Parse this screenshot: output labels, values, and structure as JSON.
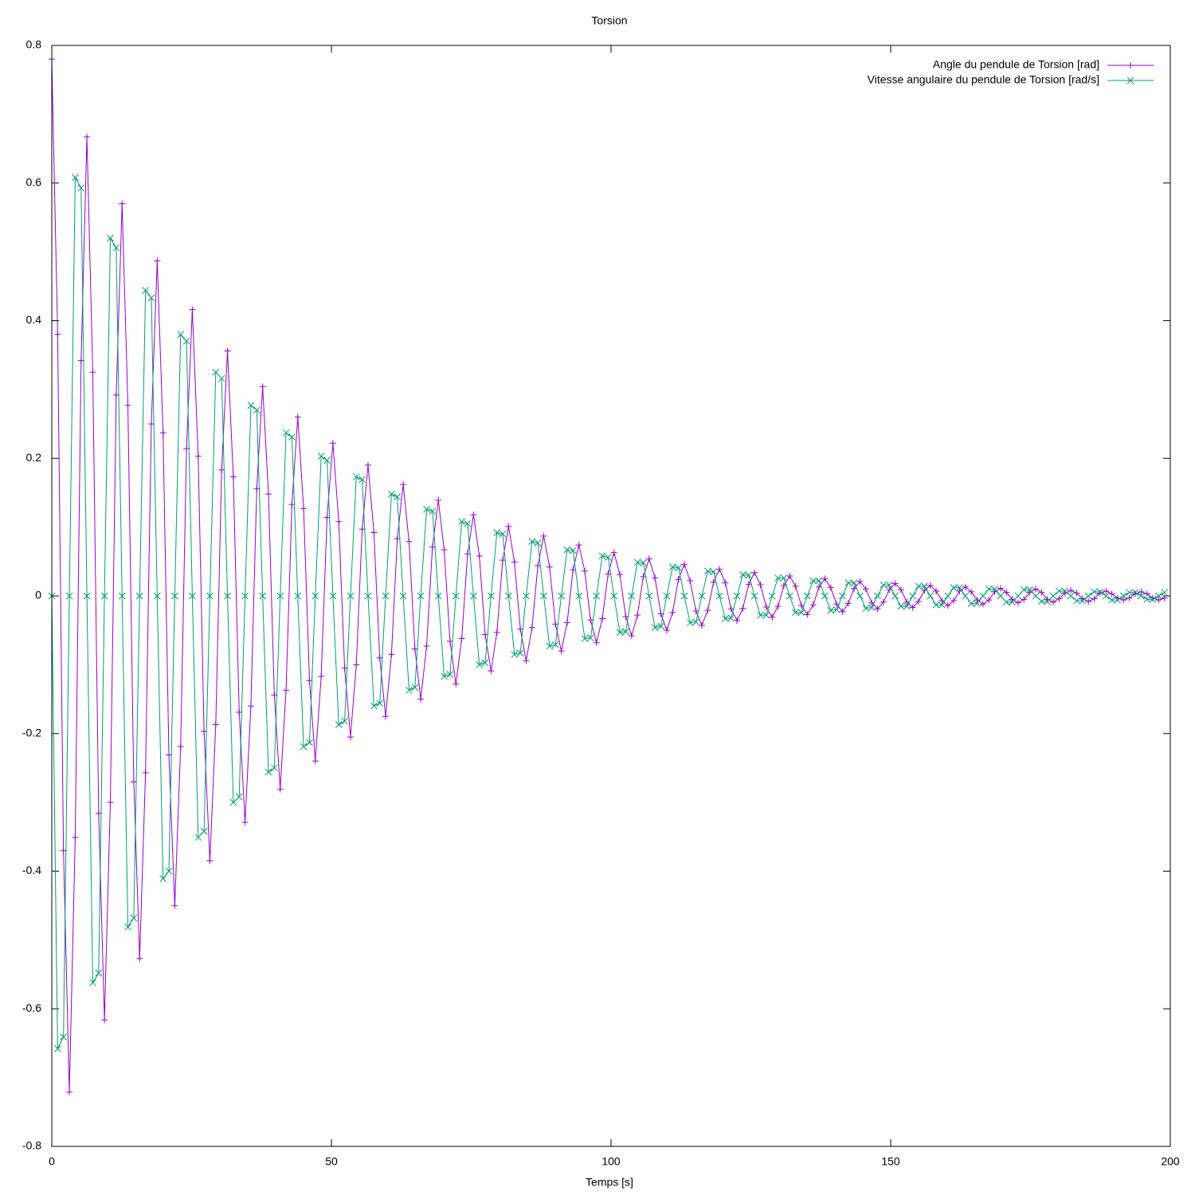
{
  "chart_data": {
    "type": "line",
    "title": "Torsion",
    "x_label": "Temps [s]",
    "xlim": [
      0,
      200
    ],
    "xticks": [
      0,
      50,
      100,
      150,
      200
    ],
    "ylim": [
      -0.8,
      0.8
    ],
    "yticks": [
      -0.8,
      -0.6,
      -0.4,
      -0.2,
      0,
      0.2,
      0.4,
      0.6,
      0.8
    ],
    "legend": "top-right",
    "x": [
      0,
      1.05,
      2.09,
      3.14,
      4.19,
      5.24,
      6.28,
      7.33,
      8.38,
      9.42,
      10.47,
      11.52,
      12.57,
      13.61,
      14.66,
      15.71,
      16.76,
      17.8,
      18.85,
      19.9,
      20.94,
      21.99,
      23.04,
      24.09,
      25.13,
      26.18,
      27.23,
      28.27,
      29.32,
      30.37,
      31.42,
      32.46,
      33.51,
      34.56,
      35.6,
      36.65,
      37.7,
      38.75,
      39.79,
      40.84,
      41.89,
      42.94,
      43.98,
      45.03,
      46.08,
      47.12,
      48.17,
      49.22,
      50.27,
      51.31,
      52.36,
      53.41,
      54.45,
      55.5,
      56.55,
      57.6,
      58.64,
      59.69,
      60.74,
      61.78,
      62.83,
      63.88,
      64.93,
      65.97,
      67.02,
      68.07,
      69.12,
      70.16,
      71.21,
      72.26,
      73.3,
      74.35,
      75.4,
      76.45,
      77.49,
      78.54,
      79.59,
      80.63,
      81.68,
      82.73,
      83.78,
      84.82,
      85.87,
      86.92,
      87.96,
      89.01,
      90.06,
      91.11,
      92.15,
      93.2,
      94.25,
      95.3,
      96.34,
      97.39,
      98.44,
      99.48,
      100.53,
      101.58,
      102.63,
      103.67,
      104.72,
      105.77,
      106.81,
      107.86,
      108.91,
      109.96,
      111,
      112.05,
      113.1,
      114.14,
      115.19,
      116.24,
      117.29,
      118.33,
      119.38,
      120.43,
      121.47,
      122.52,
      123.57,
      124.62,
      125.66,
      126.71,
      127.76,
      128.81,
      129.85,
      130.9,
      131.95,
      132.99,
      134.04,
      135.09,
      136.14,
      137.18,
      138.23,
      139.28,
      140.32,
      141.37,
      142.42,
      143.47,
      144.51,
      145.56,
      146.61,
      147.65,
      148.7,
      149.75,
      150.8,
      151.84,
      152.89,
      153.94,
      154.99,
      156.03,
      157.08,
      158.13,
      159.17,
      160.22,
      161.27,
      162.32,
      163.36,
      164.41,
      165.46,
      166.5,
      167.55,
      168.6,
      169.65,
      170.69,
      171.74,
      172.79,
      173.83,
      174.88,
      175.93,
      176.98,
      178.02,
      179.07,
      180.12,
      181.17,
      182.21,
      183.26,
      184.31,
      185.35,
      186.4,
      187.45,
      188.5,
      189.54,
      190.59,
      191.64,
      192.68,
      193.73,
      194.78,
      195.83,
      196.87,
      197.92,
      198.97
    ],
    "series": [
      {
        "name": "Angle du pendule de Torsion [rad]",
        "color": "#9400d3",
        "marker": "plus",
        "values": [
          0.78,
          0.38,
          -0.37,
          -0.721,
          -0.351,
          0.342,
          0.667,
          0.325,
          -0.316,
          -0.616,
          -0.3,
          0.292,
          0.57,
          0.277,
          -0.27,
          -0.527,
          -0.257,
          0.25,
          0.487,
          0.237,
          -0.231,
          -0.45,
          -0.219,
          0.214,
          0.416,
          0.203,
          -0.197,
          -0.385,
          -0.187,
          0.183,
          0.356,
          0.173,
          -0.169,
          -0.329,
          -0.16,
          0.156,
          0.304,
          0.148,
          -0.144,
          -0.281,
          -0.137,
          0.133,
          0.26,
          0.127,
          -0.123,
          -0.24,
          -0.117,
          0.114,
          0.222,
          0.108,
          -0.105,
          -0.205,
          -0.1,
          0.097,
          0.19,
          0.092,
          -0.09,
          -0.175,
          -0.085,
          0.083,
          0.162,
          0.079,
          -0.077,
          -0.15,
          -0.073,
          0.071,
          0.139,
          0.067,
          -0.066,
          -0.128,
          -0.062,
          0.061,
          0.118,
          0.058,
          -0.056,
          -0.109,
          -0.053,
          0.052,
          0.101,
          0.049,
          -0.048,
          -0.094,
          -0.046,
          0.044,
          0.087,
          0.042,
          -0.041,
          -0.08,
          -0.039,
          0.038,
          0.074,
          0.036,
          -0.035,
          -0.068,
          -0.033,
          0.032,
          0.063,
          0.031,
          -0.03,
          -0.058,
          -0.028,
          0.028,
          0.054,
          0.026,
          -0.026,
          -0.05,
          -0.024,
          0.024,
          0.046,
          0.022,
          -0.022,
          -0.043,
          -0.021,
          0.02,
          0.039,
          0.019,
          -0.019,
          -0.036,
          -0.018,
          0.017,
          0.034,
          0.016,
          -0.016,
          -0.031,
          -0.015,
          0.015,
          0.029,
          0.014,
          -0.014,
          -0.027,
          -0.013,
          0.013,
          0.025,
          0.012,
          -0.012,
          -0.023,
          -0.011,
          0.011,
          0.021,
          0.01,
          -0.01,
          -0.019,
          -0.009,
          0.009,
          0.018,
          0.009,
          -0.009,
          -0.017,
          -0.008,
          0.008,
          0.015,
          0.007,
          -0.007,
          -0.014,
          -0.007,
          0.007,
          0.013,
          0.006,
          -0.006,
          -0.012,
          -0.006,
          0.006,
          0.011,
          0.005,
          -0.005,
          -0.01,
          -0.005,
          0.005,
          0.01,
          0.005,
          -0.005,
          -0.009,
          -0.004,
          0.004,
          0.008,
          0.004,
          -0.004,
          -0.008,
          -0.004,
          0.004,
          0.007,
          0.003,
          -0.003,
          -0.006,
          -0.003,
          0.003,
          0.006,
          0.003,
          -0.003,
          -0.006,
          -0.003
        ]
      },
      {
        "name": "Vitesse angulaire du pendule de Torsion [rad/s]",
        "color": "#009e73",
        "marker": "cross",
        "values": [
          0,
          -0.658,
          -0.641,
          0,
          0.608,
          0.593,
          0,
          -0.562,
          -0.548,
          0,
          0.52,
          0.506,
          0,
          -0.481,
          -0.468,
          0,
          0.444,
          0.433,
          0,
          -0.411,
          -0.4,
          0,
          0.38,
          0.37,
          0,
          -0.351,
          -0.342,
          0,
          0.325,
          0.316,
          0,
          -0.3,
          -0.292,
          0,
          0.277,
          0.27,
          0,
          -0.256,
          -0.25,
          0,
          0.237,
          0.231,
          0,
          -0.219,
          -0.213,
          0,
          0.203,
          0.197,
          0,
          -0.187,
          -0.182,
          0,
          0.173,
          0.169,
          0,
          -0.16,
          -0.156,
          0,
          0.148,
          0.144,
          0,
          -0.137,
          -0.133,
          0,
          0.126,
          0.123,
          0,
          -0.117,
          -0.114,
          0,
          0.108,
          0.105,
          0,
          -0.1,
          -0.097,
          0,
          0.092,
          0.09,
          0,
          -0.085,
          -0.083,
          0,
          0.079,
          0.077,
          0,
          -0.073,
          -0.071,
          0,
          0.067,
          0.066,
          0,
          -0.062,
          -0.061,
          0,
          0.058,
          0.056,
          0,
          -0.053,
          -0.052,
          0,
          0.049,
          0.048,
          0,
          -0.046,
          -0.044,
          0,
          0.042,
          0.041,
          0,
          -0.039,
          -0.038,
          0,
          0.036,
          0.035,
          0,
          -0.033,
          -0.032,
          0,
          0.031,
          0.03,
          0,
          -0.028,
          -0.028,
          0,
          0.026,
          0.026,
          0,
          -0.024,
          -0.024,
          0,
          0.022,
          0.022,
          0,
          -0.021,
          -0.02,
          0,
          0.019,
          0.019,
          0,
          -0.018,
          -0.017,
          0,
          0.016,
          0.016,
          0,
          -0.015,
          -0.015,
          0,
          0.014,
          0.014,
          0,
          -0.013,
          -0.013,
          0,
          0.012,
          0.012,
          0,
          -0.011,
          -0.011,
          0,
          0.01,
          0.01,
          0,
          -0.009,
          -0.009,
          0,
          0.009,
          0.009,
          0,
          -0.008,
          -0.008,
          0,
          0.007,
          0.007,
          0,
          -0.007,
          -0.007,
          0,
          0.006,
          0.006,
          0,
          -0.006,
          -0.006,
          0,
          0.005,
          0.005,
          0,
          -0.005,
          -0.005,
          0,
          0.005
        ]
      }
    ]
  }
}
